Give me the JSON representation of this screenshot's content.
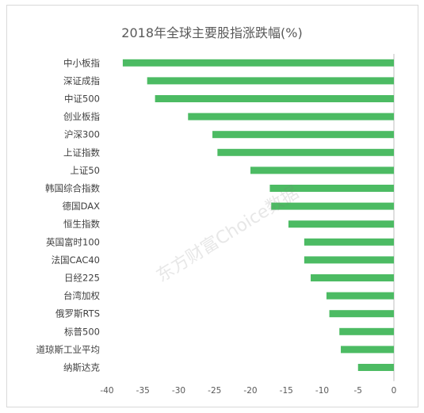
{
  "chart_data": {
    "type": "bar",
    "orientation": "horizontal",
    "title": "2018年全球主要股指涨跌幅(%)",
    "categories": [
      "中小板指",
      "深证成指",
      "中证500",
      "创业板指",
      "沪深300",
      "上证指数",
      "上证50",
      "韩国综合指数",
      "德国DAX",
      "恒生指数",
      "英国富时100",
      "法国CAC40",
      "日经225",
      "台湾加权",
      "俄罗斯RTS",
      "标普500",
      "道琼斯工业平均",
      "纳斯达克"
    ],
    "values": [
      -37.8,
      -34.4,
      -33.3,
      -28.7,
      -25.3,
      -24.6,
      -20.0,
      -17.3,
      -17.1,
      -14.7,
      -12.5,
      -12.5,
      -11.6,
      -9.4,
      -9.0,
      -7.6,
      -7.4,
      -5.0
    ],
    "xlim": [
      -40,
      0
    ],
    "xticks": [
      "-40",
      "-35",
      "-30",
      "-25",
      "-20",
      "-15",
      "-10",
      "-5",
      "0"
    ],
    "grid": false,
    "legend": "none",
    "bar_color": "#4cbb63"
  },
  "watermark": "东方财富Choice数据"
}
